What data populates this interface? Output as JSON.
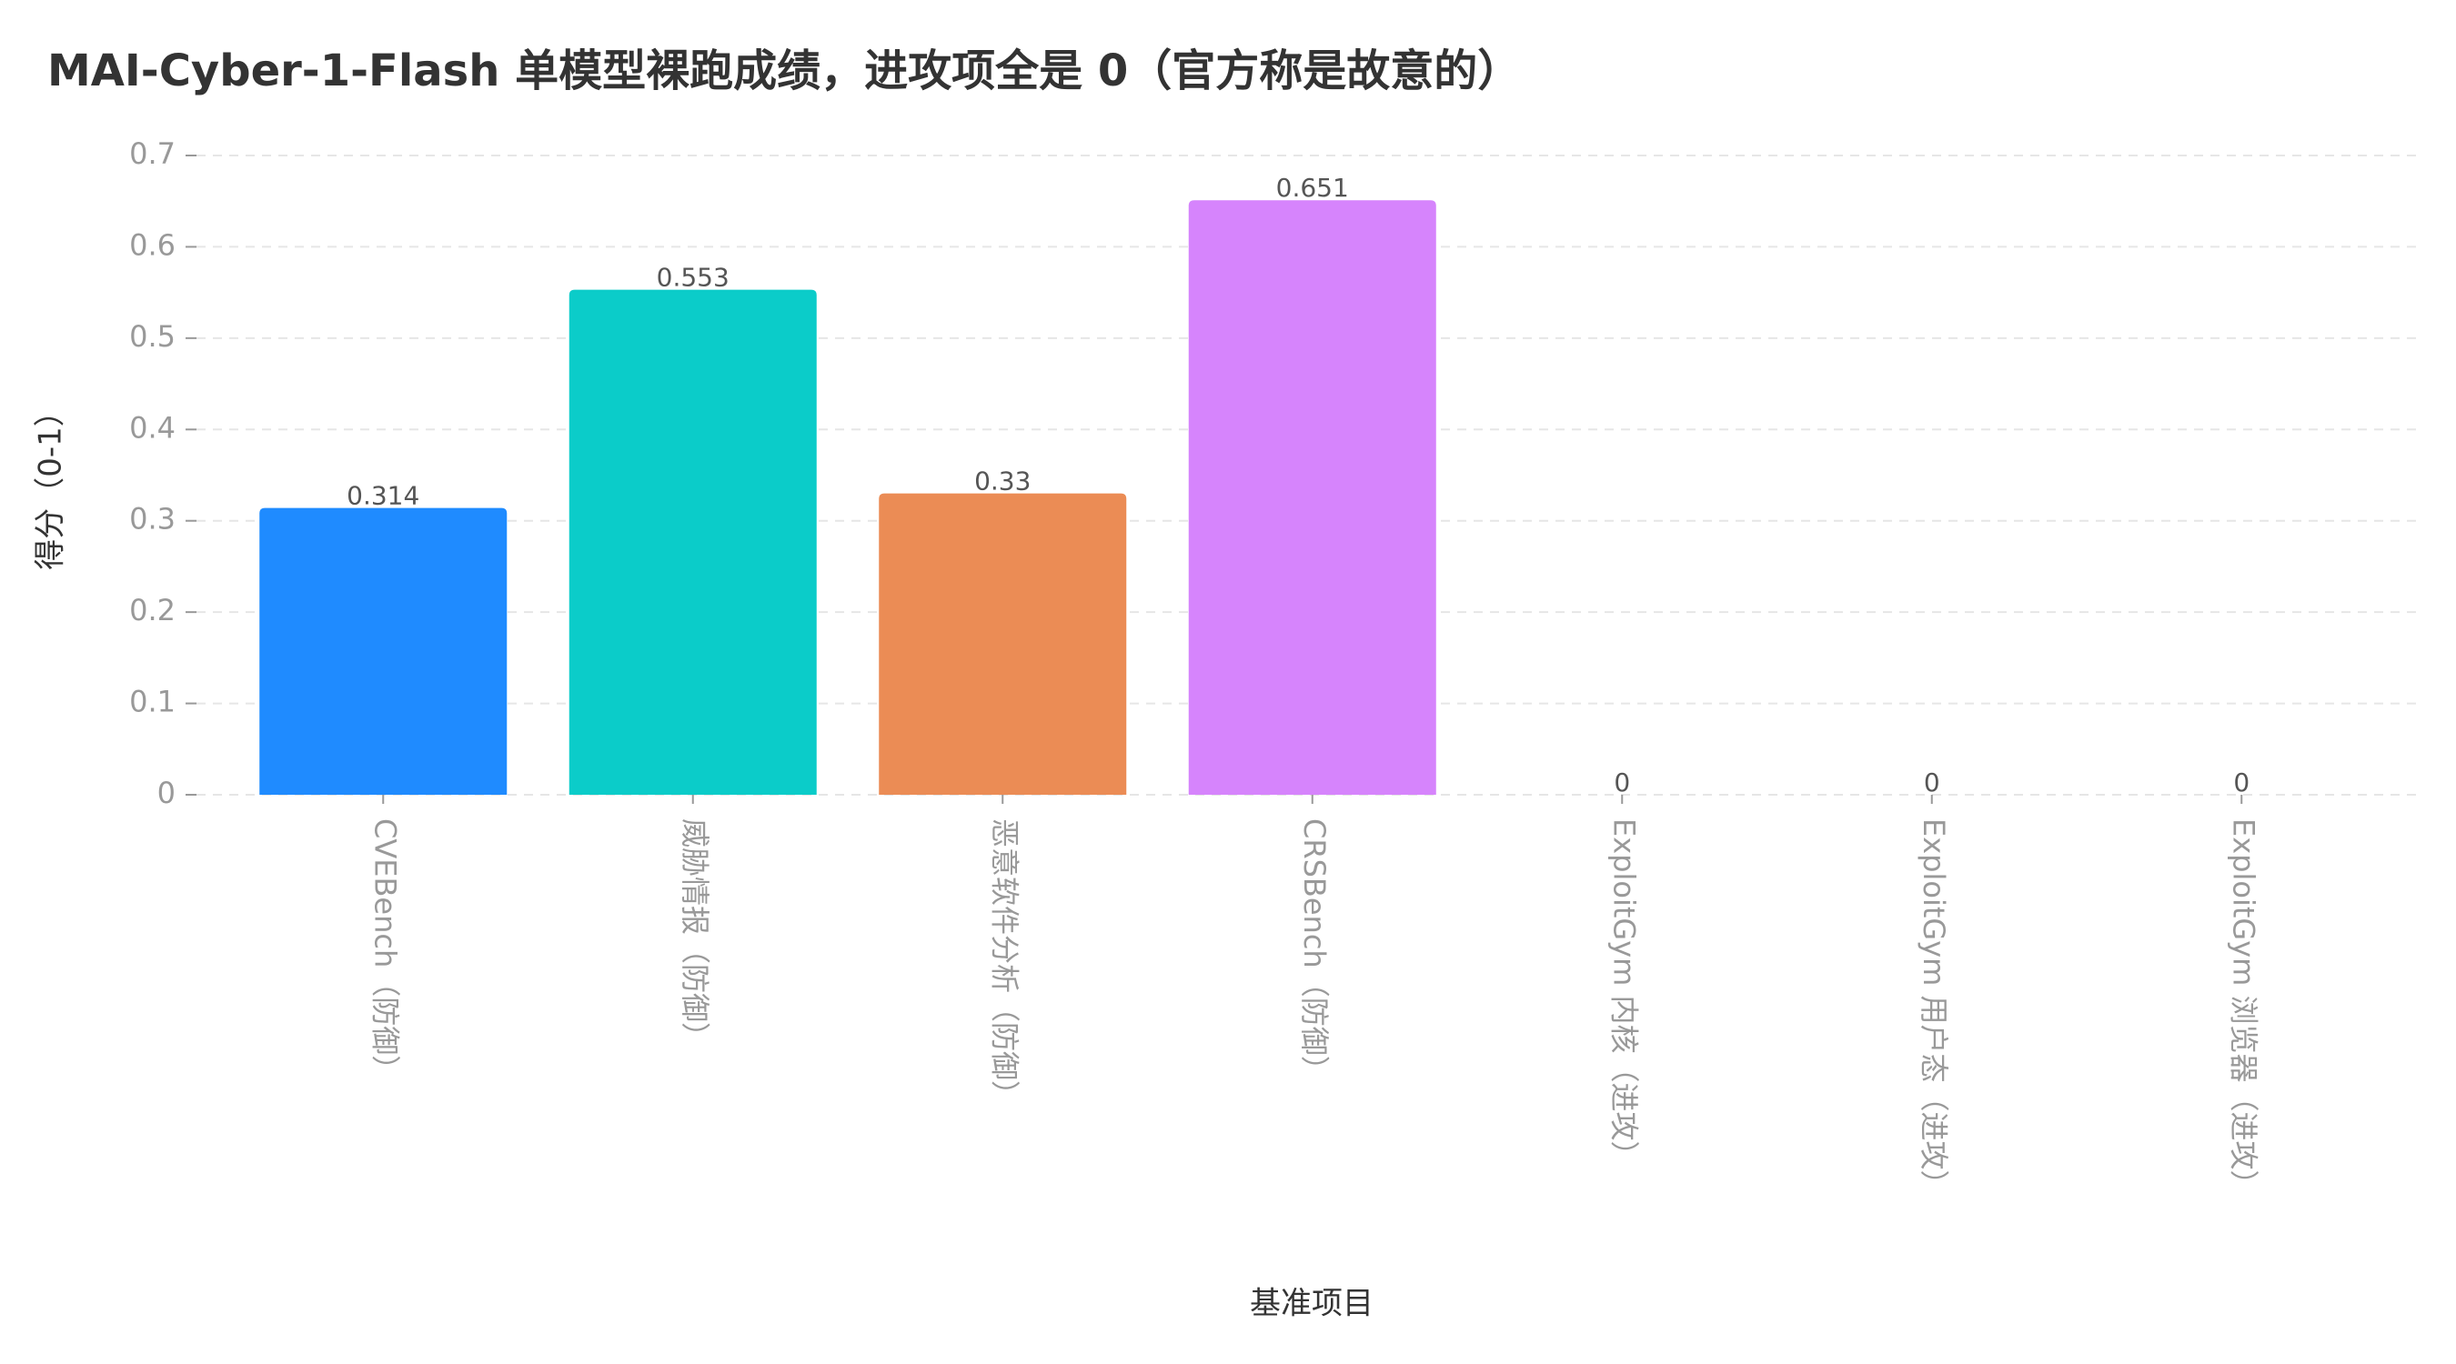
{
  "chart_data": {
    "type": "bar",
    "title": "MAI-Cyber-1-Flash 单模型裸跑成绩，进攻项全是 0（官方称是故意的）",
    "x_label": "基准项目",
    "y_label": "得分（0-1）",
    "categories": [
      "CVEBench（防御）",
      "威胁情报（防御）",
      "恶意软件分析（防御）",
      "CRSBench（防御）",
      "ExploitGym 内核（进攻）",
      "ExploitGym 用户态（进攻）",
      "ExploitGym 浏览器（进攻）"
    ],
    "values": [
      0.314,
      0.553,
      0.33,
      0.651,
      0,
      0,
      0
    ],
    "colors": [
      "#1f8bff",
      "#0bccc9",
      "#eb8c55",
      "#d684fc",
      "#888888",
      "#888888",
      "#888888"
    ],
    "ylim": [
      0,
      0.7
    ],
    "yticks": [
      0,
      0.1,
      0.2,
      0.3,
      0.4,
      0.5,
      0.6,
      0.7
    ],
    "grid": true
  }
}
